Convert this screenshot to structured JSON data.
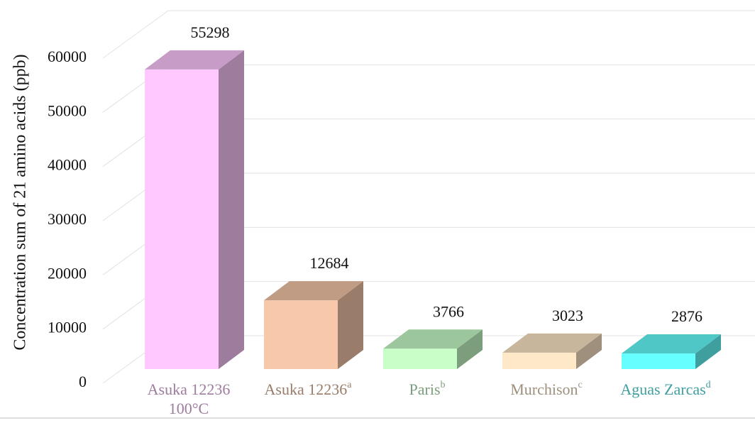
{
  "chart_data": {
    "type": "bar3d",
    "y_label": "Concentration sum of  21 amino acids (ppb)",
    "categories": [
      "Asuka 12236",
      "Asuka 12236",
      "Paris",
      "Murchison",
      "Aguas Zarcas"
    ],
    "category_subtitles": [
      "100°C",
      null,
      null,
      null,
      null
    ],
    "category_superscripts": [
      null,
      "a",
      "b",
      "c",
      "d"
    ],
    "values": [
      55298,
      12684,
      3766,
      3023,
      2876
    ],
    "colors": [
      "#ffc8ff",
      "#f7c8aa",
      "#c8ffc8",
      "#ffe8c8",
      "#66ffff"
    ],
    "ylim": [
      0,
      60000
    ],
    "yticks": [
      0,
      10000,
      20000,
      30000,
      40000,
      50000,
      60000
    ],
    "grid": true
  }
}
